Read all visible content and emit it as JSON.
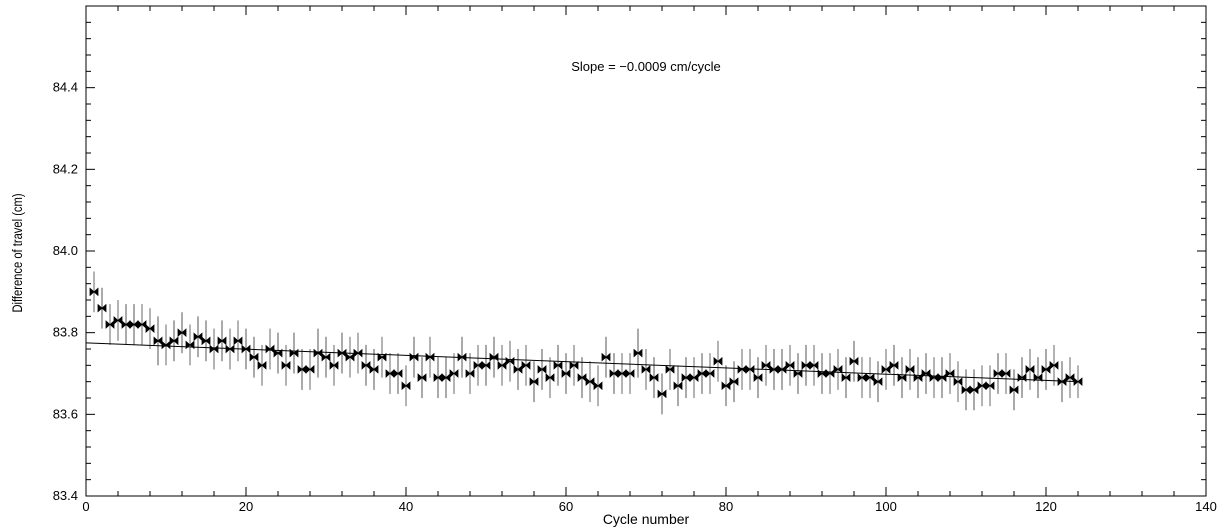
{
  "chart_data": {
    "type": "scatter",
    "title": "",
    "xlabel": "Cycle number",
    "ylabel": "Difference of travel   (cm)",
    "xlim": [
      0,
      140
    ],
    "ylim": [
      83.4,
      84.6
    ],
    "x_ticks": [
      0,
      20,
      40,
      60,
      80,
      100,
      120,
      140
    ],
    "y_ticks": [
      83.4,
      83.6,
      83.8,
      84.0,
      84.2,
      84.4
    ],
    "x_tick_labels": [
      "0",
      "20",
      "40",
      "60",
      "80",
      "100",
      "120",
      "140"
    ],
    "y_tick_labels": [
      "83.4",
      "83.6",
      "83.8",
      "84.0",
      "84.2",
      "84.4"
    ],
    "grid": false,
    "annotation": "Slope = −0.0009 cm/cycle",
    "fit_line": {
      "x": [
        0,
        124
      ],
      "y": [
        83.775,
        83.68
      ]
    },
    "series": [
      {
        "marker": "filled-bowtie",
        "x": [
          1,
          2,
          3,
          4,
          5,
          6,
          7,
          8,
          9,
          10,
          11,
          12,
          13,
          14,
          15,
          16,
          17,
          18,
          19,
          20,
          21,
          22,
          23,
          24,
          25,
          26,
          27,
          28,
          29,
          30,
          31,
          32,
          33,
          34,
          35,
          36,
          37,
          38,
          39,
          40,
          41,
          42,
          43,
          44,
          45,
          46,
          47,
          48,
          49,
          50,
          51,
          52,
          53,
          54,
          55,
          56,
          57,
          58,
          59,
          60,
          61,
          62,
          63,
          64,
          65,
          66,
          67,
          68,
          69,
          70,
          71,
          72,
          73,
          74,
          75,
          76,
          77,
          78,
          79,
          80,
          81,
          82,
          83,
          84,
          85,
          86,
          87,
          88,
          89,
          90,
          91,
          92,
          93,
          94,
          95,
          96,
          97,
          98,
          99,
          100,
          101,
          102,
          103,
          104,
          105,
          106,
          107,
          108,
          109,
          110,
          111,
          112,
          113,
          114,
          115,
          116,
          117,
          118,
          119,
          120,
          121,
          122,
          123,
          124
        ],
        "y": [
          83.9,
          83.86,
          83.82,
          83.83,
          83.82,
          83.82,
          83.82,
          83.81,
          83.78,
          83.77,
          83.78,
          83.8,
          83.77,
          83.79,
          83.78,
          83.76,
          83.78,
          83.76,
          83.78,
          83.76,
          83.74,
          83.72,
          83.76,
          83.75,
          83.72,
          83.75,
          83.71,
          83.71,
          83.75,
          83.74,
          83.72,
          83.75,
          83.74,
          83.75,
          83.72,
          83.71,
          83.74,
          83.7,
          83.7,
          83.67,
          83.74,
          83.69,
          83.74,
          83.69,
          83.69,
          83.7,
          83.74,
          83.7,
          83.72,
          83.72,
          83.74,
          83.72,
          83.73,
          83.71,
          83.72,
          83.68,
          83.71,
          83.69,
          83.72,
          83.7,
          83.72,
          83.69,
          83.68,
          83.67,
          83.74,
          83.7,
          83.7,
          83.7,
          83.75,
          83.71,
          83.69,
          83.65,
          83.71,
          83.67,
          83.69,
          83.69,
          83.7,
          83.7,
          83.73,
          83.67,
          83.68,
          83.71,
          83.71,
          83.69,
          83.72,
          83.71,
          83.71,
          83.72,
          83.7,
          83.72,
          83.72,
          83.7,
          83.7,
          83.71,
          83.69,
          83.73,
          83.69,
          83.69,
          83.68,
          83.71,
          83.72,
          83.69,
          83.71,
          83.69,
          83.7,
          83.69,
          83.69,
          83.7,
          83.68,
          83.66,
          83.66,
          83.67,
          83.67,
          83.7,
          83.7,
          83.66,
          83.69,
          83.71,
          83.69,
          83.71,
          83.72,
          83.68,
          83.69,
          83.68
        ],
        "yerr": [
          0.05,
          0.05,
          0.05,
          0.05,
          0.05,
          0.05,
          0.05,
          0.05,
          0.06,
          0.05,
          0.05,
          0.05,
          0.05,
          0.05,
          0.05,
          0.05,
          0.05,
          0.05,
          0.05,
          0.05,
          0.05,
          0.05,
          0.05,
          0.05,
          0.05,
          0.05,
          0.05,
          0.05,
          0.06,
          0.05,
          0.05,
          0.05,
          0.05,
          0.05,
          0.05,
          0.05,
          0.05,
          0.05,
          0.05,
          0.05,
          0.05,
          0.05,
          0.05,
          0.05,
          0.05,
          0.05,
          0.05,
          0.05,
          0.05,
          0.05,
          0.05,
          0.05,
          0.05,
          0.05,
          0.05,
          0.05,
          0.05,
          0.05,
          0.05,
          0.05,
          0.05,
          0.05,
          0.05,
          0.05,
          0.05,
          0.05,
          0.05,
          0.05,
          0.06,
          0.05,
          0.05,
          0.05,
          0.05,
          0.05,
          0.05,
          0.05,
          0.05,
          0.05,
          0.05,
          0.05,
          0.05,
          0.05,
          0.05,
          0.05,
          0.05,
          0.05,
          0.05,
          0.05,
          0.05,
          0.05,
          0.05,
          0.05,
          0.05,
          0.05,
          0.05,
          0.05,
          0.05,
          0.05,
          0.05,
          0.05,
          0.05,
          0.05,
          0.05,
          0.05,
          0.05,
          0.05,
          0.05,
          0.05,
          0.05,
          0.05,
          0.05,
          0.05,
          0.05,
          0.05,
          0.05,
          0.05,
          0.05,
          0.05,
          0.05,
          0.05,
          0.05,
          0.05,
          0.05,
          0.04
        ]
      }
    ]
  },
  "colors": {
    "axis": "#000000",
    "marker": "#000000",
    "errorbar_dark": "#555555",
    "errorbar_light": "#b4b4b4",
    "fit_line": "#000000"
  }
}
